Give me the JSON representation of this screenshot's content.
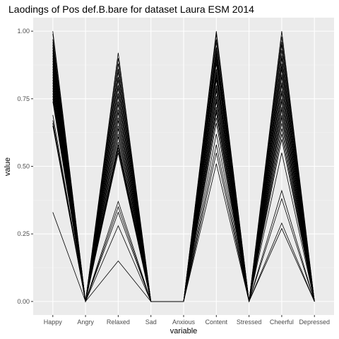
{
  "chart_data": {
    "type": "line",
    "title": "Laodings of Pos def.B.bare for dataset Laura ESM 2014",
    "xlabel": "variable",
    "ylabel": "value",
    "categories": [
      "Happy",
      "Angry",
      "Relaxed",
      "Sad",
      "Anxious",
      "Content",
      "Stressed",
      "Cheerful",
      "Depressed"
    ],
    "ylim": [
      -0.05,
      1.05
    ],
    "yticks": [
      0,
      0.25,
      0.5,
      0.75,
      1
    ],
    "ytick_labels": [
      "0.00",
      "0.25",
      "0.50",
      "0.75",
      "1.00"
    ],
    "grid": true,
    "background": "#ebebeb",
    "line_color": "#000000",
    "series": [
      {
        "values": [
          1.0,
          0,
          0.92,
          0,
          0,
          1.0,
          0,
          1.0,
          0
        ]
      },
      {
        "values": [
          0.99,
          0,
          0.9,
          0,
          0,
          0.99,
          0,
          0.98,
          0
        ]
      },
      {
        "values": [
          0.97,
          0,
          0.88,
          0,
          0,
          0.97,
          0,
          0.96,
          0
        ]
      },
      {
        "values": [
          0.96,
          0,
          0.86,
          0,
          0,
          0.96,
          0,
          0.95,
          0
        ]
      },
      {
        "values": [
          0.95,
          0,
          0.85,
          0,
          0,
          0.94,
          0,
          0.93,
          0
        ]
      },
      {
        "values": [
          0.94,
          0,
          0.83,
          0,
          0,
          0.93,
          0,
          0.91,
          0
        ]
      },
      {
        "values": [
          0.93,
          0,
          0.82,
          0,
          0,
          0.92,
          0,
          0.9,
          0
        ]
      },
      {
        "values": [
          0.92,
          0,
          0.8,
          0,
          0,
          0.91,
          0,
          0.88,
          0
        ]
      },
      {
        "values": [
          0.91,
          0,
          0.79,
          0,
          0,
          0.9,
          0,
          0.87,
          0
        ]
      },
      {
        "values": [
          0.9,
          0,
          0.77,
          0,
          0,
          0.89,
          0,
          0.86,
          0
        ]
      },
      {
        "values": [
          0.89,
          0,
          0.76,
          0,
          0,
          0.88,
          0,
          0.84,
          0
        ]
      },
      {
        "values": [
          0.88,
          0,
          0.74,
          0,
          0,
          0.86,
          0,
          0.83,
          0
        ]
      },
      {
        "values": [
          0.87,
          0,
          0.73,
          0,
          0,
          0.85,
          0,
          0.81,
          0
        ]
      },
      {
        "values": [
          0.86,
          0,
          0.71,
          0,
          0,
          0.84,
          0,
          0.8,
          0
        ]
      },
      {
        "values": [
          0.85,
          0,
          0.7,
          0,
          0,
          0.83,
          0,
          0.78,
          0
        ]
      },
      {
        "values": [
          0.84,
          0,
          0.68,
          0,
          0,
          0.82,
          0,
          0.77,
          0
        ]
      },
      {
        "values": [
          0.83,
          0,
          0.67,
          0,
          0,
          0.8,
          0,
          0.75,
          0
        ]
      },
      {
        "values": [
          0.82,
          0,
          0.65,
          0,
          0,
          0.79,
          0,
          0.74,
          0
        ]
      },
      {
        "values": [
          0.81,
          0,
          0.64,
          0,
          0,
          0.78,
          0,
          0.72,
          0
        ]
      },
      {
        "values": [
          0.8,
          0,
          0.62,
          0,
          0,
          0.76,
          0,
          0.71,
          0
        ]
      },
      {
        "values": [
          0.79,
          0,
          0.61,
          0,
          0,
          0.75,
          0,
          0.69,
          0
        ]
      },
      {
        "values": [
          0.78,
          0,
          0.59,
          0,
          0,
          0.74,
          0,
          0.68,
          0
        ]
      },
      {
        "values": [
          0.77,
          0,
          0.58,
          0,
          0,
          0.72,
          0,
          0.66,
          0
        ]
      },
      {
        "values": [
          0.76,
          0,
          0.57,
          0,
          0,
          0.71,
          0,
          0.64,
          0
        ]
      },
      {
        "values": [
          0.75,
          0,
          0.56,
          0,
          0,
          0.7,
          0,
          0.62,
          0
        ]
      },
      {
        "values": [
          0.74,
          0,
          0.55,
          0,
          0,
          0.68,
          0,
          0.6,
          0
        ]
      },
      {
        "values": [
          0.69,
          0,
          0.37,
          0,
          0,
          0.66,
          0,
          0.55,
          0
        ]
      },
      {
        "values": [
          0.67,
          0,
          0.35,
          0,
          0,
          0.62,
          0,
          0.41,
          0
        ]
      },
      {
        "values": [
          0.66,
          0,
          0.33,
          0,
          0,
          0.58,
          0,
          0.38,
          0
        ]
      },
      {
        "values": [
          0.65,
          0,
          0.28,
          0,
          0,
          0.55,
          0,
          0.29,
          0
        ]
      },
      {
        "values": [
          0.33,
          0,
          0.15,
          0,
          0,
          0.51,
          0,
          0.27,
          0
        ]
      }
    ]
  }
}
